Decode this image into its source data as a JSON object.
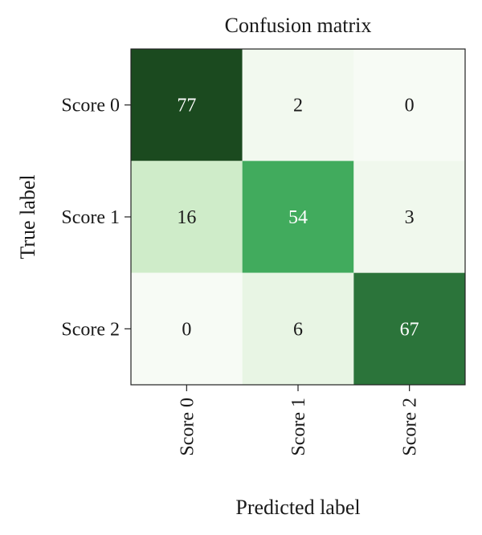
{
  "chart_data": {
    "type": "heatmap",
    "title": "Confusion matrix",
    "xlabel": "Predicted label",
    "ylabel": "True label",
    "x_categories": [
      "Score 0",
      "Score 1",
      "Score 2"
    ],
    "y_categories": [
      "Score 0",
      "Score 1",
      "Score 2"
    ],
    "values": [
      [
        77,
        2,
        0
      ],
      [
        16,
        54,
        3
      ],
      [
        0,
        6,
        67
      ]
    ],
    "colormap": "Greens",
    "color_range": [
      0,
      77
    ],
    "colors": {
      "low": "#f7fbf5",
      "mid_low": "#c7e9c0",
      "mid": "#41ab5d",
      "high": "#1b4a1f",
      "text_dark": "#1a1a1a",
      "text_light": "#ffffff"
    }
  }
}
